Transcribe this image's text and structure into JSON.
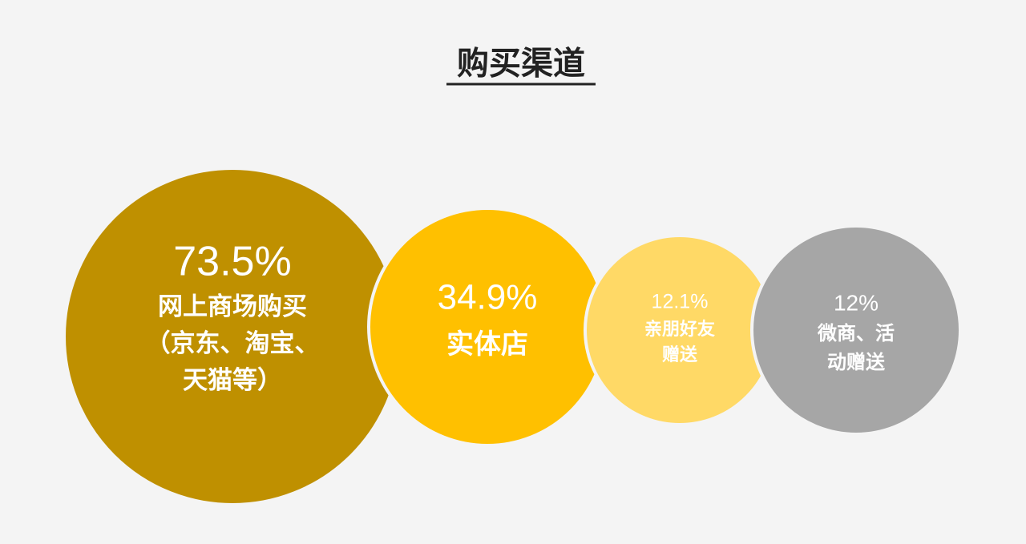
{
  "chart_data": {
    "type": "bubble",
    "title": "购买渠道",
    "categories": [
      "网上商场购买\n（京东、淘宝、\n天猫等）",
      "实体店",
      "亲朋好友\n赠送",
      "微商、活\n动赠送"
    ],
    "values": [
      73.5,
      34.9,
      12.1,
      12
    ],
    "value_labels": [
      "73.5%",
      "34.9%",
      "12.1%",
      "12%"
    ],
    "colors": [
      "#bf9000",
      "#ffc000",
      "#ffd966",
      "#a6a6a6"
    ]
  }
}
